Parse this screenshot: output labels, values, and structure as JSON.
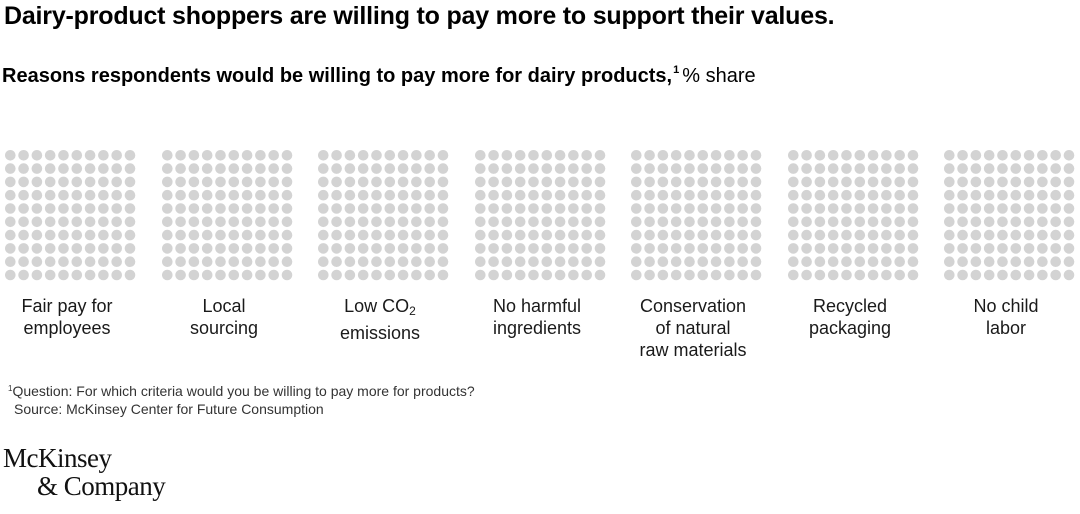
{
  "header": {
    "title": "Dairy-product shoppers are willing to pay more to support their values.",
    "subtitle_main": "Reasons respondents would be willing to pay more for dairy products,",
    "subtitle_sup": "1",
    "subtitle_unit": "% share"
  },
  "chart_data": {
    "type": "waffle",
    "title": "Reasons respondents would be willing to pay more for dairy products",
    "unit": "% share",
    "grid": {
      "rows": 10,
      "cols": 10
    },
    "categories": [
      {
        "label_lines": [
          "Fair pay for",
          "employees"
        ]
      },
      {
        "label_lines": [
          "Local",
          "sourcing"
        ]
      },
      {
        "label_lines": [
          "Low CO",
          "emissions"
        ],
        "subscript": "2"
      },
      {
        "label_lines": [
          "No harmful",
          "ingredients"
        ]
      },
      {
        "label_lines": [
          "Conservation",
          "of natural",
          "raw materials"
        ]
      },
      {
        "label_lines": [
          "Recycled",
          "packaging"
        ]
      },
      {
        "label_lines": [
          "No child",
          "labor"
        ]
      }
    ],
    "values": [
      null,
      null,
      null,
      null,
      null,
      null,
      null
    ],
    "colors": {
      "unfilled": "#d3d3d3"
    }
  },
  "footnote": {
    "marker": "1",
    "question": "Question: For which criteria would you be willing to pay more for products?",
    "source": "Source: McKinsey Center for Future Consumption"
  },
  "logo": {
    "line1": "McKinsey",
    "line2": "& Company"
  }
}
